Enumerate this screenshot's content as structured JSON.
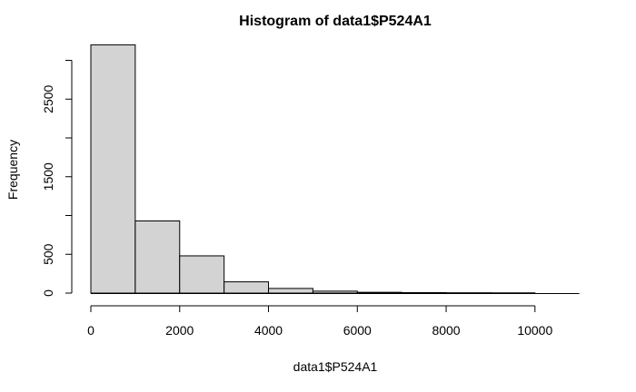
{
  "chart_data": {
    "type": "bar",
    "title": "Histogram of data1$P524A1",
    "xlabel": "data1$P524A1",
    "ylabel": "Frequency",
    "bins": [
      {
        "from": 0,
        "to": 1000,
        "count": 3200
      },
      {
        "from": 1000,
        "to": 2000,
        "count": 930
      },
      {
        "from": 2000,
        "to": 3000,
        "count": 480
      },
      {
        "from": 3000,
        "to": 4000,
        "count": 145
      },
      {
        "from": 4000,
        "to": 5000,
        "count": 60
      },
      {
        "from": 5000,
        "to": 6000,
        "count": 25
      },
      {
        "from": 6000,
        "to": 7000,
        "count": 10
      },
      {
        "from": 7000,
        "to": 8000,
        "count": 6
      },
      {
        "from": 8000,
        "to": 9000,
        "count": 4
      },
      {
        "from": 9000,
        "to": 10000,
        "count": 3
      }
    ],
    "xlim": [
      0,
      11000
    ],
    "ylim": [
      0,
      3200
    ],
    "x_ticks": [
      0,
      2000,
      4000,
      6000,
      8000,
      10000
    ],
    "y_ticks": [
      0,
      500,
      1500,
      2500
    ],
    "y_tick_marks": [
      0,
      500,
      1000,
      1500,
      2000,
      2500,
      3000
    ],
    "bar_fill": "#d3d3d3",
    "bar_stroke": "#000000",
    "grid": false,
    "legend": "none"
  }
}
